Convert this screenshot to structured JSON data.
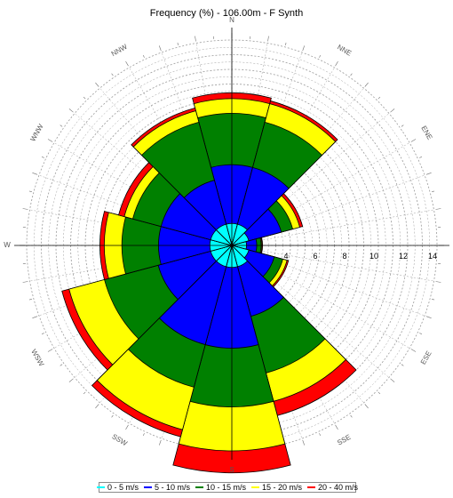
{
  "chart_data": {
    "type": "windrose",
    "title": "Frequency (%) - 106.00m - F Synth",
    "radial_max": 14,
    "radial_tick_labels": [
      "4",
      "6",
      "8",
      "10",
      "12",
      "14"
    ],
    "direction_labels": [
      "N",
      "NNE",
      "ENE",
      "E",
      "ESE",
      "SSE",
      "S",
      "SSW",
      "WSW",
      "W",
      "WNW",
      "NNW"
    ],
    "speed_bins": [
      {
        "name": "0 - 5 m/s",
        "color": "#00ffff"
      },
      {
        "name": "5 - 10 m/s",
        "color": "#0000ff"
      },
      {
        "name": "10 - 15 m/s",
        "color": "#008000"
      },
      {
        "name": "15 - 20 m/s",
        "color": "#ffff00"
      },
      {
        "name": "20 - 40 m/s",
        "color": "#ff0000"
      }
    ],
    "sectors": [
      {
        "direction": "N",
        "cumulative": [
          1.5,
          5.5,
          9.0,
          10.0,
          10.4
        ]
      },
      {
        "direction": "NNE",
        "cumulative": [
          1.5,
          5.5,
          8.7,
          10.0,
          10.2
        ]
      },
      {
        "direction": "ENE",
        "cumulative": [
          1.2,
          3.5,
          4.3,
          4.8,
          5.0
        ]
      },
      {
        "direction": "E",
        "cumulative": [
          1.0,
          1.7,
          2.0,
          2.05,
          2.1
        ]
      },
      {
        "direction": "ESE",
        "cumulative": [
          1.2,
          3.0,
          3.6,
          3.9,
          4.0
        ]
      },
      {
        "direction": "SSE",
        "cumulative": [
          1.5,
          5.0,
          9.0,
          11.0,
          12.0
        ]
      },
      {
        "direction": "S",
        "cumulative": [
          1.5,
          7.0,
          11.0,
          14.0,
          15.5
        ]
      },
      {
        "direction": "SSW",
        "cumulative": [
          1.5,
          7.0,
          10.0,
          13.0,
          13.5
        ]
      },
      {
        "direction": "WSW",
        "cumulative": [
          1.5,
          5.2,
          9.0,
          11.5,
          12.0
        ]
      },
      {
        "direction": "W",
        "cumulative": [
          1.5,
          5.0,
          7.5,
          8.7,
          9.0
        ]
      },
      {
        "direction": "WNW",
        "cumulative": [
          1.5,
          5.0,
          7.0,
          7.6,
          8.0
        ]
      },
      {
        "direction": "NNW",
        "cumulative": [
          1.5,
          4.6,
          8.7,
          9.5,
          9.7
        ]
      }
    ],
    "grid": true,
    "legend_position": "bottom"
  }
}
